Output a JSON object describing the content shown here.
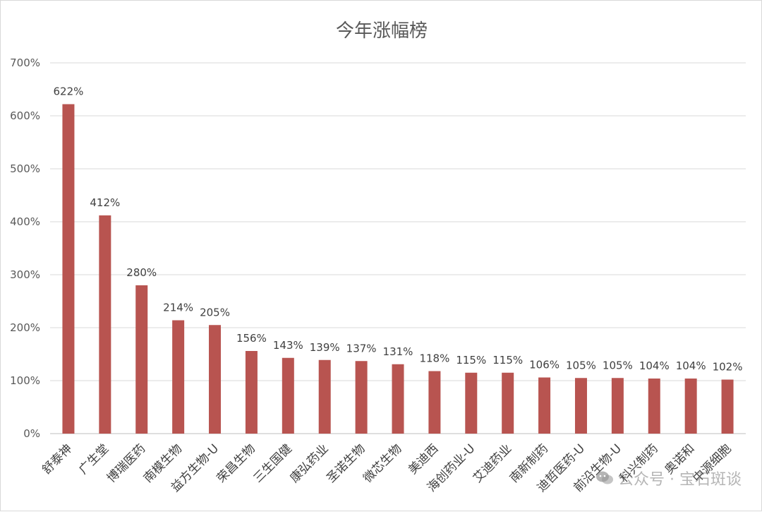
{
  "chart_data": {
    "type": "bar",
    "title": "今年涨幅榜",
    "xlabel": "",
    "ylabel": "",
    "ylim": [
      0,
      700
    ],
    "yticks": [
      "0%",
      "100%",
      "200%",
      "300%",
      "400%",
      "500%",
      "600%",
      "700%"
    ],
    "ytick_values": [
      0,
      100,
      200,
      300,
      400,
      500,
      600,
      700
    ],
    "grid": true,
    "legend": "none",
    "bar_color": "#b85450",
    "categories": [
      "舒泰神",
      "广生堂",
      "博瑞医药",
      "南模生物",
      "益方生物-U",
      "荣昌生物",
      "三生国健",
      "康弘药业",
      "圣诺生物",
      "微芯生物",
      "美迪西",
      "海创药业-U",
      "艾迪药业",
      "南新制药",
      "迪哲医药-U",
      "前沿生物-U",
      "科兴制药",
      "奥诺和",
      "中源细胞"
    ],
    "values": [
      622,
      412,
      280,
      214,
      205,
      156,
      143,
      139,
      137,
      131,
      118,
      115,
      115,
      106,
      105,
      105,
      104,
      104,
      102
    ],
    "data_labels": [
      "622%",
      "412%",
      "280%",
      "214%",
      "205%",
      "156%",
      "143%",
      "139%",
      "137%",
      "131%",
      "118%",
      "115%",
      "115%",
      "106%",
      "105%",
      "105%",
      "104%",
      "104%",
      "102%"
    ]
  },
  "watermark": {
    "text": "公众号 · 宝石斑谈",
    "icon": "wechat-icon"
  }
}
